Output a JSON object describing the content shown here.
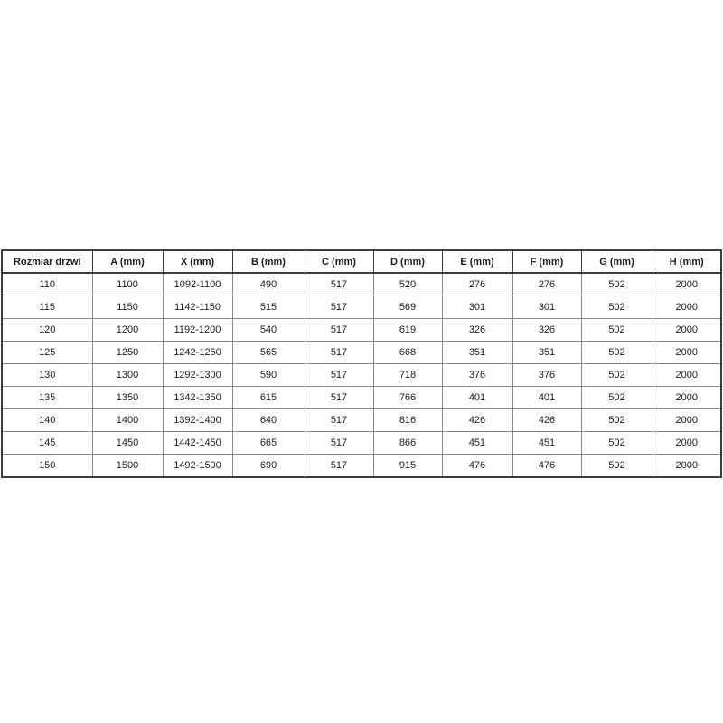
{
  "table": {
    "title": "door-size-specification",
    "headers": [
      "Rozmiar drzwi",
      "A (mm)",
      "X (mm)",
      "B (mm)",
      "C (mm)",
      "D (mm)",
      "E (mm)",
      "F (mm)",
      "G (mm)",
      "H (mm)"
    ],
    "rows": [
      [
        "110",
        "1100",
        "1092-1100",
        "490",
        "517",
        "520",
        "276",
        "276",
        "502",
        "2000"
      ],
      [
        "115",
        "1150",
        "1142-1150",
        "515",
        "517",
        "569",
        "301",
        "301",
        "502",
        "2000"
      ],
      [
        "120",
        "1200",
        "1192-1200",
        "540",
        "517",
        "619",
        "326",
        "326",
        "502",
        "2000"
      ],
      [
        "125",
        "1250",
        "1242-1250",
        "565",
        "517",
        "668",
        "351",
        "351",
        "502",
        "2000"
      ],
      [
        "130",
        "1300",
        "1292-1300",
        "590",
        "517",
        "718",
        "376",
        "376",
        "502",
        "2000"
      ],
      [
        "135",
        "1350",
        "1342-1350",
        "615",
        "517",
        "766",
        "401",
        "401",
        "502",
        "2000"
      ],
      [
        "140",
        "1400",
        "1392-1400",
        "640",
        "517",
        "816",
        "426",
        "426",
        "502",
        "2000"
      ],
      [
        "145",
        "1450",
        "1442-1450",
        "665",
        "517",
        "866",
        "451",
        "451",
        "502",
        "2000"
      ],
      [
        "150",
        "1500",
        "1492-1500",
        "690",
        "517",
        "915",
        "476",
        "476",
        "502",
        "2000"
      ]
    ],
    "colors": {
      "outer_border": "#3d3d3d",
      "inner_border": "#8a8a8a",
      "text": "#1c1c1c",
      "background": "#ffffff"
    }
  }
}
